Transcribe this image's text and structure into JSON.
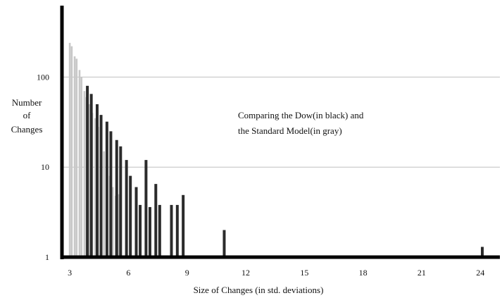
{
  "chart_data": {
    "type": "bar",
    "title": "",
    "annotation_lines": [
      "Comparing the Dow(in black) and",
      "the Standard Model(in gray)"
    ],
    "xlabel": "Size of Changes (in std. deviations)",
    "ylabel_lines": [
      "Number",
      "of",
      "Changes"
    ],
    "xlim": [
      2.6,
      25
    ],
    "ylim": [
      1,
      600
    ],
    "y_scale": "log",
    "x_ticks": [
      3,
      6,
      9,
      12,
      15,
      18,
      21,
      24
    ],
    "y_ticks": [
      {
        "value": 1,
        "label": "1"
      },
      {
        "value": 10,
        "label": "10"
      },
      {
        "value": 100,
        "label": "100"
      }
    ],
    "grid": {
      "horizontal": true,
      "lines_at": [
        10,
        100
      ]
    },
    "legend": "none",
    "colors": {
      "dow": "#2b2b2b",
      "standard_model": "#c8c8c8",
      "axis": "#000000",
      "grid": "#c0c0c0"
    },
    "series": [
      {
        "name": "Dow",
        "points": [
          [
            3.9,
            80
          ],
          [
            4.1,
            65
          ],
          [
            4.4,
            50
          ],
          [
            4.6,
            38
          ],
          [
            4.9,
            32
          ],
          [
            5.1,
            25
          ],
          [
            5.4,
            20
          ],
          [
            5.6,
            17
          ],
          [
            5.9,
            12
          ],
          [
            6.1,
            8
          ],
          [
            6.4,
            6
          ],
          [
            6.6,
            3.8
          ],
          [
            6.9,
            12
          ],
          [
            7.1,
            3.6
          ],
          [
            7.4,
            6.5
          ],
          [
            7.6,
            3.8
          ],
          [
            8.2,
            3.8
          ],
          [
            8.5,
            3.8
          ],
          [
            8.8,
            4.9
          ],
          [
            10.9,
            2
          ],
          [
            24.1,
            1.3
          ]
        ]
      },
      {
        "name": "Standard Model",
        "points": [
          [
            3.0,
            240
          ],
          [
            3.1,
            220
          ],
          [
            3.25,
            170
          ],
          [
            3.35,
            160
          ],
          [
            3.5,
            120
          ],
          [
            3.6,
            100
          ],
          [
            3.75,
            70
          ],
          [
            3.85,
            60
          ],
          [
            4.0,
            50
          ],
          [
            4.15,
            40
          ],
          [
            4.3,
            35
          ],
          [
            4.45,
            28
          ],
          [
            4.6,
            20
          ],
          [
            4.75,
            15
          ],
          [
            4.9,
            11
          ],
          [
            5.05,
            8
          ],
          [
            5.2,
            6
          ],
          [
            5.35,
            4.8
          ],
          [
            5.5,
            5
          ]
        ]
      }
    ]
  }
}
